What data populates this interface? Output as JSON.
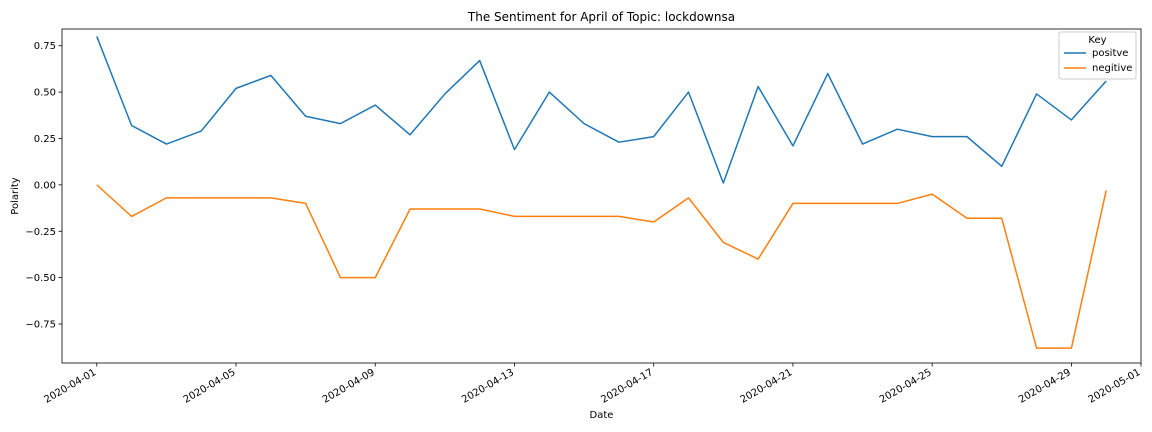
{
  "chart_data": {
    "type": "line",
    "title": "The Sentiment for April of Topic: lockdownsa",
    "xlabel": "Date",
    "ylabel": "Polarity",
    "ylim": [
      -0.96,
      0.84
    ],
    "xlim": [
      "2020-03-31",
      "2020-05-01"
    ],
    "yticks": [
      0.75,
      0.5,
      0.25,
      0.0,
      -0.25,
      -0.5,
      -0.75
    ],
    "ytick_labels": [
      "0.75",
      "0.50",
      "0.25",
      "0.00",
      "−0.25",
      "−0.50",
      "−0.75"
    ],
    "xticks": [
      "2020-04-01",
      "2020-04-05",
      "2020-04-09",
      "2020-04-13",
      "2020-04-17",
      "2020-04-21",
      "2020-04-25",
      "2020-04-29",
      "2020-05-01"
    ],
    "grid": false,
    "legend": {
      "title": "Key",
      "placement": "top-right"
    },
    "x": [
      "2020-04-01",
      "2020-04-02",
      "2020-04-03",
      "2020-04-04",
      "2020-04-05",
      "2020-04-06",
      "2020-04-07",
      "2020-04-08",
      "2020-04-09",
      "2020-04-10",
      "2020-04-11",
      "2020-04-12",
      "2020-04-13",
      "2020-04-14",
      "2020-04-15",
      "2020-04-16",
      "2020-04-17",
      "2020-04-18",
      "2020-04-19",
      "2020-04-20",
      "2020-04-21",
      "2020-04-22",
      "2020-04-23",
      "2020-04-24",
      "2020-04-25",
      "2020-04-26",
      "2020-04-27",
      "2020-04-28",
      "2020-04-29",
      "2020-04-30"
    ],
    "series": [
      {
        "name": "positve",
        "color": "#1f77b4",
        "values": [
          0.8,
          0.32,
          0.22,
          0.29,
          0.52,
          0.59,
          0.37,
          0.33,
          0.43,
          0.27,
          0.49,
          0.67,
          0.19,
          0.5,
          0.33,
          0.23,
          0.26,
          0.5,
          0.01,
          0.53,
          0.21,
          0.6,
          0.22,
          0.3,
          0.26,
          0.26,
          0.1,
          0.49,
          0.35,
          0.56
        ]
      },
      {
        "name": "negitive",
        "color": "#ff7f0e",
        "values": [
          0.0,
          -0.17,
          -0.07,
          -0.07,
          -0.07,
          -0.07,
          -0.1,
          -0.5,
          -0.5,
          -0.13,
          -0.13,
          -0.13,
          -0.17,
          -0.17,
          -0.17,
          -0.17,
          -0.2,
          -0.07,
          -0.31,
          -0.4,
          -0.1,
          -0.1,
          -0.1,
          -0.1,
          -0.05,
          -0.18,
          -0.18,
          -0.88,
          -0.88,
          -0.03
        ]
      }
    ]
  }
}
